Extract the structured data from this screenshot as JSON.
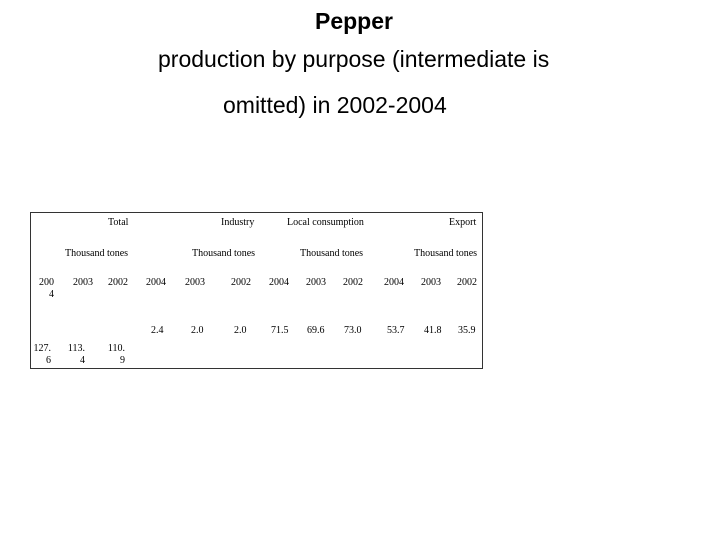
{
  "title": {
    "line1": "Pepper",
    "line2": "production by purpose (intermediate is",
    "line3": "omitted) in 2002-2004"
  },
  "table": {
    "groups": [
      "Total",
      "Industry",
      "Local consumption",
      "Export"
    ],
    "units": [
      "Thousand tones",
      "Thousand tones",
      "Thousand tones",
      "Thousand tones"
    ],
    "years": {
      "total": [
        "200\n4",
        "2003",
        "2002"
      ],
      "industry": [
        "2004",
        "2003",
        "2002"
      ],
      "local": [
        "2004",
        "2003",
        "2002"
      ],
      "export": [
        "2004",
        "2003",
        "2002"
      ]
    },
    "values": {
      "total": [
        "127.\n6",
        "113.\n4",
        "110.\n9"
      ],
      "industry": [
        "2.4",
        "2.0",
        "2.0"
      ],
      "local": [
        "71.5",
        "69.6",
        "73.0"
      ],
      "export": [
        "53.7",
        "41.8",
        "35.9"
      ]
    }
  }
}
